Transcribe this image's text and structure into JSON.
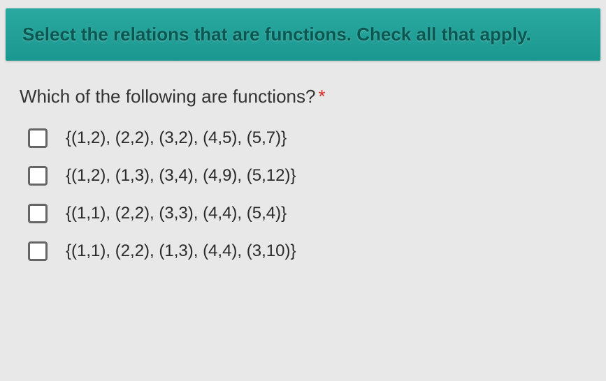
{
  "header": {
    "title": "Select the relations that are functions. Check all that apply."
  },
  "question": {
    "prompt": "Which of the following are functions?",
    "required_marker": "*"
  },
  "options": [
    {
      "label": "{(1,2), (2,2), (3,2), (4,5), (5,7)}"
    },
    {
      "label": "{(1,2), (1,3), (3,4), (4,9), (5,12)}"
    },
    {
      "label": "{(1,1), (2,2), (3,3), (4,4), (5,4)}"
    },
    {
      "label": "{(1,1), (2,2), (1,3), (4,4), (3,10)}"
    }
  ],
  "styling": {
    "background_color": "#e8e8e8",
    "banner_gradient_top": "#2aa9a0",
    "banner_gradient_bottom": "#1a9890",
    "banner_text_color": "#0a5852",
    "question_text_color": "#333333",
    "option_text_color": "#2a2a2a",
    "checkbox_border_color": "#666666",
    "required_color": "#d93025",
    "header_fontsize": 26,
    "question_fontsize": 26,
    "option_fontsize": 24
  }
}
